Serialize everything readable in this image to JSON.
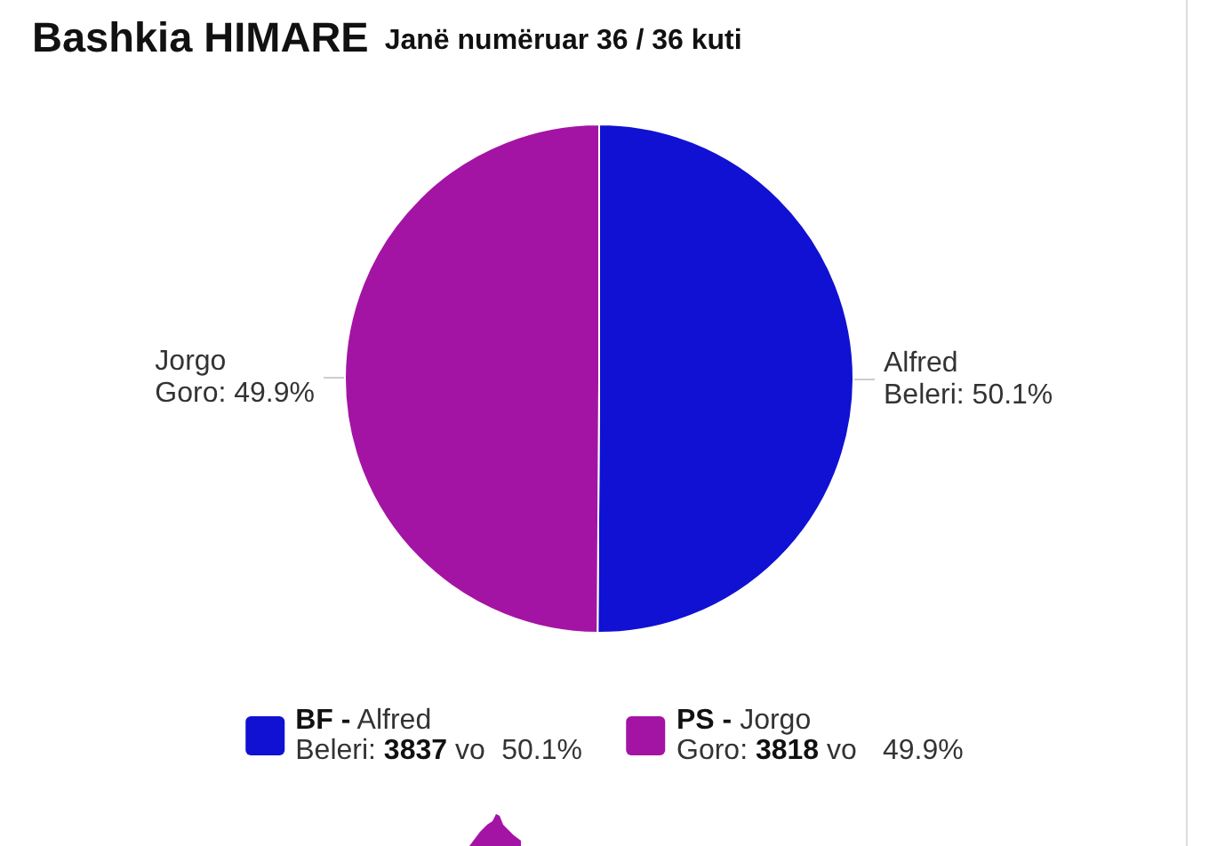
{
  "chart_data": {
    "type": "pie",
    "title": "Bashkia HIMARE",
    "subtitle": "Janë numëruar 36 / 36 kuti",
    "categories": [
      "Alfred Beleri",
      "Jorgo Goro"
    ],
    "values": [
      50.1,
      49.9
    ],
    "value_labels": [
      "50.1%",
      "49.9%"
    ],
    "colors": [
      "#1111d3",
      "#a414a4"
    ],
    "annotations": [
      "BF - Alfred Beleri: 3837 vo 50.1%",
      "PS - Jorgo Goro: 3818 vo 49.9%"
    ]
  }
}
